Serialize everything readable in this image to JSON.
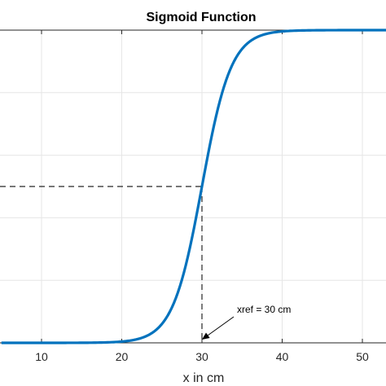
{
  "chart_data": {
    "type": "line",
    "title": "Sigmoid Function",
    "xlabel": "x in cm",
    "ylabel": "",
    "xlim": [
      5,
      57
    ],
    "ylim": [
      0,
      1
    ],
    "x_ticks": [
      10,
      20,
      30,
      40,
      50
    ],
    "x_tick_labels": [
      "10",
      "20",
      "30",
      "40",
      "50"
    ],
    "y_grid": [
      0,
      0.2,
      0.4,
      0.6,
      0.8,
      1.0
    ],
    "grid": true,
    "series": [
      {
        "curve": "logistic",
        "midpoint": 30,
        "steepness": 0.55,
        "color": "#0072BD"
      }
    ],
    "reference": {
      "x": 30,
      "y": 0.5
    },
    "annotation": {
      "text": "xref = 30 cm",
      "points_to_x": 30
    }
  }
}
